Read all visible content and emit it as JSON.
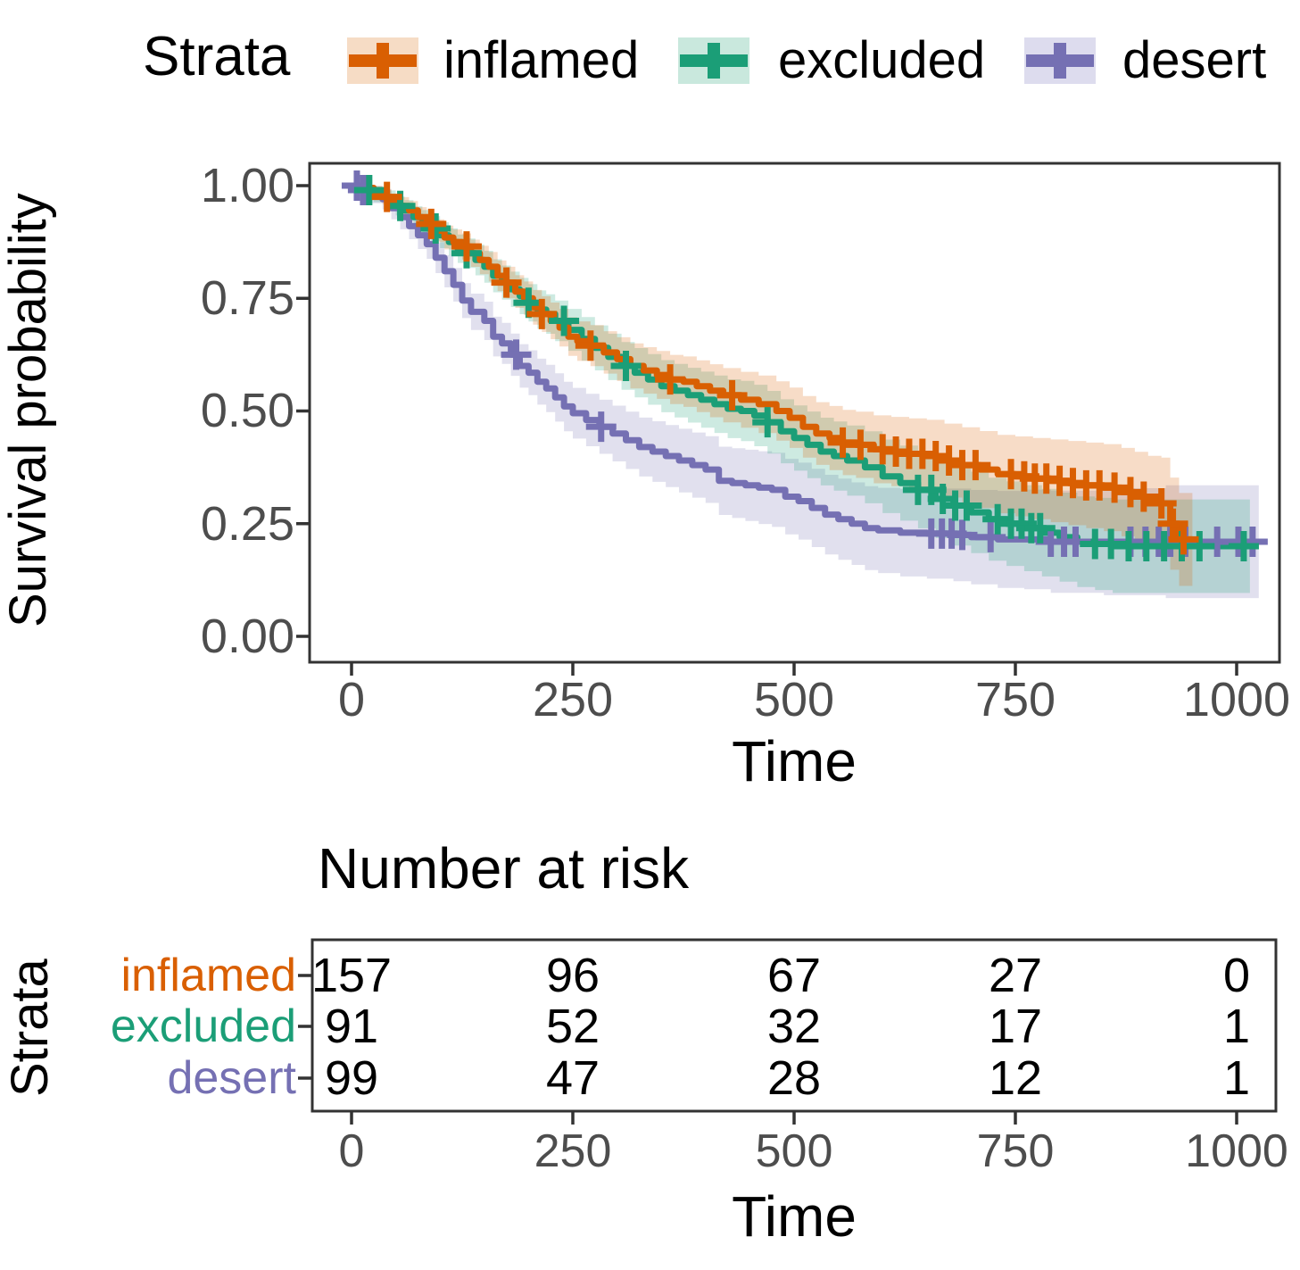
{
  "legend": {
    "title": "Strata",
    "items": [
      {
        "label": "inflamed",
        "color": "#D95F02",
        "fill": "#F6DCC5"
      },
      {
        "label": "excluded",
        "color": "#1B9E77",
        "fill": "#C9E8DD"
      },
      {
        "label": "desert",
        "color": "#7570B3",
        "fill": "#DDDCEE"
      }
    ]
  },
  "km_plot": {
    "ylabel": "Survival probability",
    "xlabel": "Time",
    "yticks": [
      "1.00",
      "0.75",
      "0.50",
      "0.25",
      "0.00"
    ],
    "xticks": [
      "0",
      "250",
      "500",
      "750",
      "1000"
    ]
  },
  "risk_table": {
    "title": "Number at risk",
    "ylabel": "Strata",
    "xlabel": "Time",
    "xticks": [
      "0",
      "250",
      "500",
      "750",
      "1000"
    ],
    "rows": [
      {
        "label": "inflamed",
        "color": "#D95F02",
        "values": [
          "157",
          "96",
          "67",
          "27",
          "0"
        ]
      },
      {
        "label": "excluded",
        "color": "#1B9E77",
        "values": [
          "91",
          "52",
          "32",
          "17",
          "1"
        ]
      },
      {
        "label": "desert",
        "color": "#7570B3",
        "values": [
          "99",
          "47",
          "28",
          "12",
          "1"
        ]
      }
    ]
  },
  "chart_data": {
    "type": "line",
    "subtype": "kaplan-meier-step",
    "title": "",
    "xlabel": "Time",
    "ylabel": "Survival probability",
    "xlim": [
      0,
      1050
    ],
    "ylim": [
      0,
      1
    ],
    "xticks": [
      0,
      250,
      500,
      750,
      1000
    ],
    "yticks": [
      1.0,
      0.75,
      0.5,
      0.25,
      0.0
    ],
    "legend_position": "top",
    "grid": false,
    "series": [
      {
        "name": "inflamed",
        "color": "#D95F02",
        "band": {
          "base": 0.008,
          "mult": 0.1,
          "pow": 0.75
        },
        "times": [
          0,
          15,
          25,
          35,
          45,
          55,
          65,
          75,
          85,
          95,
          105,
          115,
          125,
          135,
          145,
          155,
          165,
          175,
          185,
          195,
          205,
          215,
          225,
          235,
          245,
          255,
          270,
          285,
          300,
          315,
          330,
          345,
          360,
          375,
          390,
          405,
          420,
          440,
          460,
          480,
          495,
          510,
          525,
          540,
          555,
          570,
          590,
          610,
          630,
          650,
          670,
          690,
          710,
          730,
          750,
          770,
          790,
          810,
          830,
          850,
          870,
          885,
          900,
          915,
          925,
          935,
          950
        ],
        "surv": [
          1.0,
          0.995,
          0.985,
          0.975,
          0.965,
          0.955,
          0.945,
          0.93,
          0.915,
          0.9,
          0.885,
          0.875,
          0.865,
          0.85,
          0.835,
          0.82,
          0.8,
          0.785,
          0.765,
          0.75,
          0.73,
          0.715,
          0.7,
          0.685,
          0.665,
          0.655,
          0.645,
          0.63,
          0.615,
          0.6,
          0.59,
          0.58,
          0.57,
          0.565,
          0.555,
          0.545,
          0.535,
          0.525,
          0.515,
          0.5,
          0.485,
          0.465,
          0.45,
          0.44,
          0.43,
          0.425,
          0.415,
          0.41,
          0.405,
          0.4,
          0.39,
          0.38,
          0.37,
          0.36,
          0.355,
          0.35,
          0.345,
          0.34,
          0.335,
          0.33,
          0.32,
          0.31,
          0.3,
          0.295,
          0.25,
          0.215,
          0.215
        ],
        "censor_times": [
          40,
          90,
          130,
          175,
          215,
          270,
          360,
          430,
          555,
          575,
          600,
          615,
          630,
          645,
          660,
          675,
          690,
          705,
          745,
          760,
          772,
          785,
          800,
          815,
          830,
          845,
          862,
          880,
          895,
          915,
          928,
          940
        ]
      },
      {
        "name": "excluded",
        "color": "#1B9E77",
        "band": {
          "base": 0.01,
          "mult": 0.105,
          "pow": 0.75
        },
        "times": [
          0,
          15,
          25,
          40,
          50,
          60,
          70,
          80,
          90,
          100,
          110,
          120,
          130,
          140,
          150,
          160,
          170,
          180,
          190,
          200,
          210,
          220,
          230,
          245,
          260,
          275,
          290,
          305,
          320,
          335,
          350,
          365,
          380,
          395,
          410,
          425,
          440,
          455,
          470,
          485,
          500,
          515,
          530,
          545,
          560,
          580,
          600,
          620,
          640,
          660,
          680,
          700,
          720,
          740,
          760,
          780,
          800,
          820,
          840,
          860,
          1015
        ],
        "surv": [
          1.0,
          0.99,
          0.98,
          0.97,
          0.955,
          0.945,
          0.93,
          0.92,
          0.905,
          0.89,
          0.875,
          0.86,
          0.85,
          0.835,
          0.82,
          0.8,
          0.785,
          0.77,
          0.755,
          0.74,
          0.725,
          0.715,
          0.7,
          0.68,
          0.66,
          0.64,
          0.62,
          0.6,
          0.585,
          0.57,
          0.555,
          0.545,
          0.535,
          0.525,
          0.515,
          0.505,
          0.5,
          0.49,
          0.475,
          0.455,
          0.44,
          0.425,
          0.41,
          0.4,
          0.39,
          0.375,
          0.355,
          0.34,
          0.325,
          0.305,
          0.29,
          0.275,
          0.26,
          0.25,
          0.24,
          0.23,
          0.22,
          0.21,
          0.205,
          0.2,
          0.2
        ],
        "censor_times": [
          20,
          55,
          95,
          130,
          200,
          240,
          310,
          470,
          640,
          655,
          668,
          682,
          695,
          730,
          745,
          757,
          768,
          778,
          840,
          858,
          878,
          898,
          918,
          938,
          958,
          1008
        ]
      },
      {
        "name": "desert",
        "color": "#7570B3",
        "band": {
          "base": 0.012,
          "mult": 0.12,
          "pow": 0.72
        },
        "times": [
          0,
          10,
          20,
          35,
          45,
          55,
          65,
          75,
          85,
          95,
          105,
          115,
          125,
          135,
          150,
          160,
          170,
          180,
          190,
          200,
          210,
          220,
          230,
          240,
          250,
          265,
          280,
          295,
          310,
          325,
          340,
          355,
          370,
          385,
          400,
          415,
          430,
          445,
          460,
          475,
          490,
          505,
          520,
          535,
          550,
          565,
          580,
          595,
          620,
          650,
          680,
          700,
          730,
          760,
          790,
          850,
          920,
          1025
        ],
        "surv": [
          1.0,
          0.99,
          0.98,
          0.97,
          0.95,
          0.93,
          0.91,
          0.89,
          0.87,
          0.84,
          0.81,
          0.78,
          0.745,
          0.72,
          0.7,
          0.665,
          0.65,
          0.625,
          0.6,
          0.585,
          0.565,
          0.55,
          0.53,
          0.51,
          0.495,
          0.48,
          0.465,
          0.45,
          0.435,
          0.42,
          0.41,
          0.4,
          0.39,
          0.38,
          0.37,
          0.345,
          0.34,
          0.335,
          0.33,
          0.325,
          0.31,
          0.3,
          0.285,
          0.27,
          0.26,
          0.25,
          0.24,
          0.235,
          0.23,
          0.228,
          0.225,
          0.22,
          0.215,
          0.215,
          0.21,
          0.21,
          0.21,
          0.21
        ],
        "censor_times": [
          6,
          13,
          19,
          186,
          282,
          655,
          667,
          678,
          690,
          722,
          790,
          805,
          818,
          880,
          897,
          912,
          925,
          942,
          978,
          1002,
          1018
        ]
      }
    ],
    "risk_table": {
      "title": "Number at risk",
      "time_points": [
        0,
        250,
        500,
        750,
        1000
      ],
      "rows": [
        {
          "name": "inflamed",
          "counts": [
            157,
            96,
            67,
            27,
            0
          ]
        },
        {
          "name": "excluded",
          "counts": [
            91,
            52,
            32,
            17,
            1
          ]
        },
        {
          "name": "desert",
          "counts": [
            99,
            47,
            28,
            12,
            1
          ]
        }
      ]
    }
  }
}
